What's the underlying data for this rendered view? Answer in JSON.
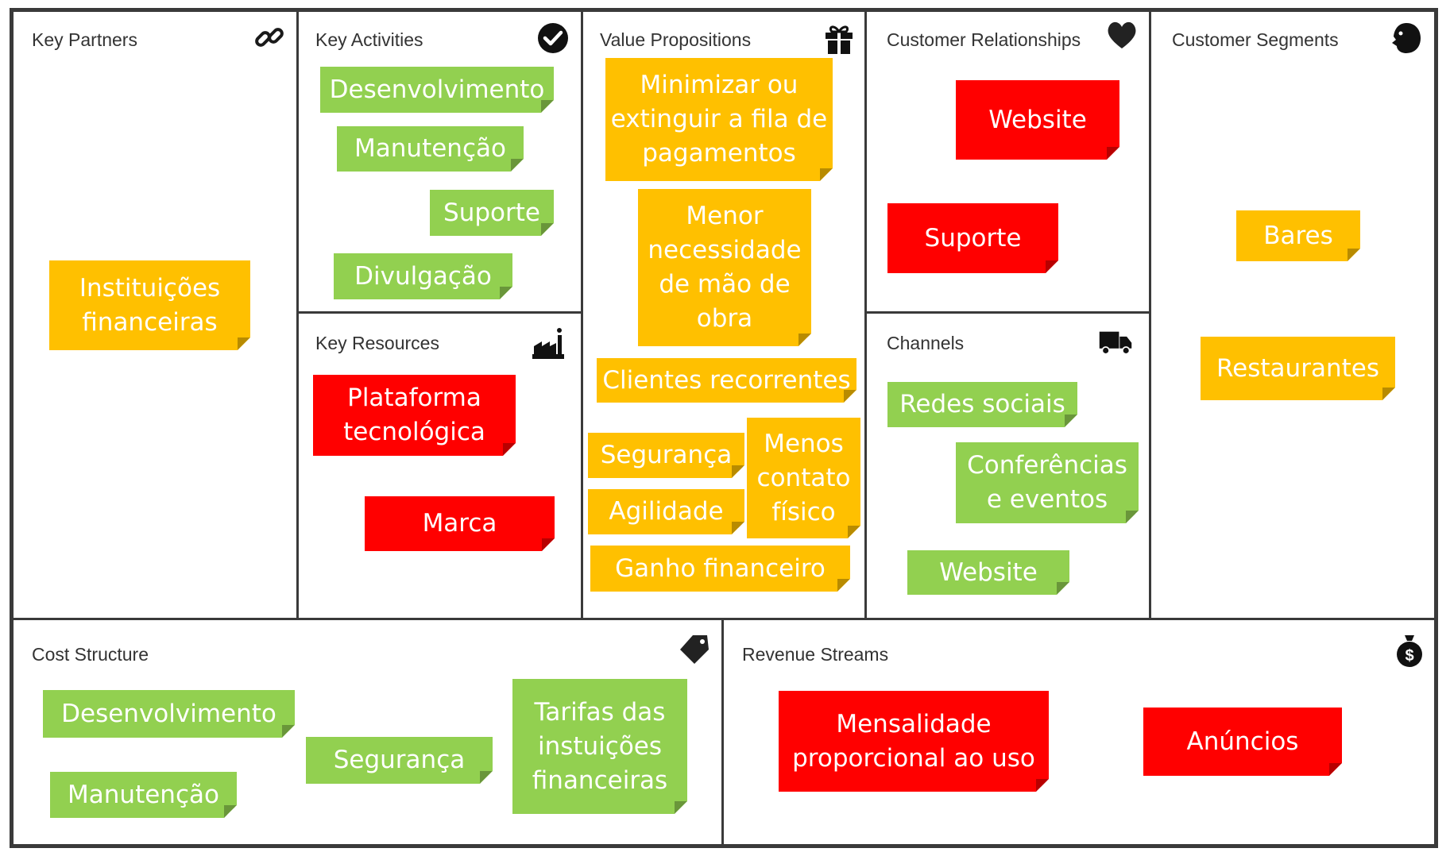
{
  "colors": {
    "green": "#92d050",
    "yellow": "#ffc000",
    "red": "#ff0000",
    "border": "#3a3a3a"
  },
  "sections": {
    "key_partners": {
      "title": "Key Partners",
      "icon": "link-icon"
    },
    "key_activities": {
      "title": "Key Activities",
      "icon": "checkmark-icon"
    },
    "value_propositions": {
      "title": "Value Propositions",
      "icon": "gift-icon"
    },
    "customer_relationships": {
      "title": "Customer Relationships",
      "icon": "heart-icon"
    },
    "customer_segments": {
      "title": "Customer Segments",
      "icon": "person-head-icon"
    },
    "key_resources": {
      "title": "Key Resources",
      "icon": "factory-icon"
    },
    "channels": {
      "title": "Channels",
      "icon": "truck-icon"
    },
    "cost_structure": {
      "title": "Cost Structure",
      "icon": "price-tag-icon"
    },
    "revenue_streams": {
      "title": "Revenue Streams",
      "icon": "money-bag-icon"
    }
  },
  "notes": {
    "kp_instituicoes": "Instituições\nfinanceiras",
    "ka_desenvolvimento": "Desenvolvimento",
    "ka_manutencao": "Manutenção",
    "ka_suporte": "Suporte",
    "ka_divulgacao": "Divulgação",
    "kr_plataforma": "Plataforma\ntecnológica",
    "kr_marca": "Marca",
    "vp_minimizar": "Minimizar ou\nextinguir a fila de\npagamentos",
    "vp_menor": "Menor\nnecessidade\nde mão de\nobra",
    "vp_clientes": "Clientes recorrentes",
    "vp_seguranca": "Segurança",
    "vp_agilidade": "Agilidade",
    "vp_menos_contato": "Menos\ncontato\nfísico",
    "vp_ganho": "Ganho financeiro",
    "cr_website": "Website",
    "cr_suporte": "Suporte",
    "ch_redes": "Redes sociais",
    "ch_conferencias": "Conferências\ne eventos",
    "ch_website": "Website",
    "cs_bares": "Bares",
    "cs_restaurantes": "Restaurantes",
    "co_desenvolvimento": "Desenvolvimento",
    "co_manutencao": "Manutenção",
    "co_seguranca": "Segurança",
    "co_tarifas": "Tarifas das\ninstuições\nfinanceiras",
    "rs_mensalidade": "Mensalidade\nproporcional ao uso",
    "rs_anuncios": "Anúncios"
  }
}
